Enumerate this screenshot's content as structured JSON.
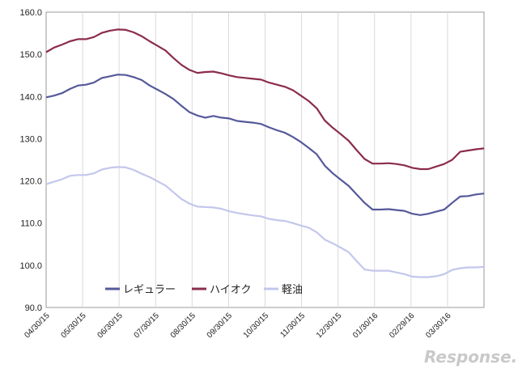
{
  "chart_data": {
    "type": "line",
    "title": "",
    "xlabel": "",
    "ylabel": "",
    "ylim": [
      90,
      160
    ],
    "y_ticks": [
      "90.0",
      "100.0",
      "110.0",
      "120.0",
      "130.0",
      "140.0",
      "150.0",
      "160.0"
    ],
    "x_tick_labels": [
      "04/30/15",
      "05/30/15",
      "06/30/15",
      "07/30/15",
      "08/30/15",
      "09/30/15",
      "10/30/15",
      "11/30/15",
      "12/30/15",
      "01/30/16",
      "02/29/16",
      "03/30/16"
    ],
    "grid": "vertical",
    "legend": "bottom-left",
    "series": [
      {
        "name": "レギュラー",
        "color": "#55599a",
        "values": [
          139.8,
          140.2,
          140.8,
          141.8,
          142.6,
          142.8,
          143.3,
          144.4,
          144.8,
          145.2,
          145.1,
          144.6,
          143.9,
          142.6,
          141.6,
          140.6,
          139.4,
          137.8,
          136.3,
          135.5,
          135.0,
          135.4,
          135.0,
          134.8,
          134.2,
          134.0,
          133.8,
          133.5,
          132.7,
          132.0,
          131.4,
          130.4,
          129.2,
          127.8,
          126.3,
          123.6,
          121.8,
          120.3,
          118.8,
          116.8,
          114.8,
          113.2,
          113.2,
          113.3,
          113.1,
          112.9,
          112.2,
          111.9,
          112.2,
          112.7,
          113.2,
          114.8,
          116.3,
          116.4,
          116.8,
          117.0
        ]
      },
      {
        "name": "ハイオク",
        "color": "#8b2c4f",
        "values": [
          150.5,
          151.6,
          152.3,
          153.1,
          153.6,
          153.6,
          154.1,
          155.1,
          155.6,
          155.9,
          155.8,
          155.2,
          154.3,
          153.1,
          152.0,
          150.9,
          149.1,
          147.5,
          146.3,
          145.6,
          145.8,
          145.9,
          145.5,
          145.0,
          144.6,
          144.4,
          144.2,
          144.0,
          143.3,
          142.8,
          142.3,
          141.5,
          140.2,
          138.9,
          137.2,
          134.3,
          132.6,
          131.1,
          129.5,
          127.3,
          125.2,
          124.1,
          124.1,
          124.2,
          124.0,
          123.7,
          123.1,
          122.8,
          122.8,
          123.4,
          124.0,
          125.0,
          126.9,
          127.2,
          127.5,
          127.7
        ]
      },
      {
        "name": "軽油",
        "color": "#c3c7ec",
        "values": [
          119.2,
          119.8,
          120.4,
          121.2,
          121.4,
          121.4,
          121.8,
          122.7,
          123.1,
          123.3,
          123.2,
          122.6,
          121.7,
          120.9,
          119.9,
          118.9,
          117.3,
          115.7,
          114.6,
          113.9,
          113.8,
          113.7,
          113.4,
          112.8,
          112.4,
          112.1,
          111.8,
          111.6,
          111.0,
          110.7,
          110.5,
          110.0,
          109.4,
          108.9,
          107.8,
          106.1,
          105.2,
          104.2,
          103.1,
          101.0,
          99.0,
          98.7,
          98.7,
          98.7,
          98.3,
          97.9,
          97.3,
          97.2,
          97.2,
          97.4,
          97.9,
          98.9,
          99.3,
          99.5,
          99.5,
          99.6
        ]
      }
    ]
  },
  "watermark_text": "Response."
}
